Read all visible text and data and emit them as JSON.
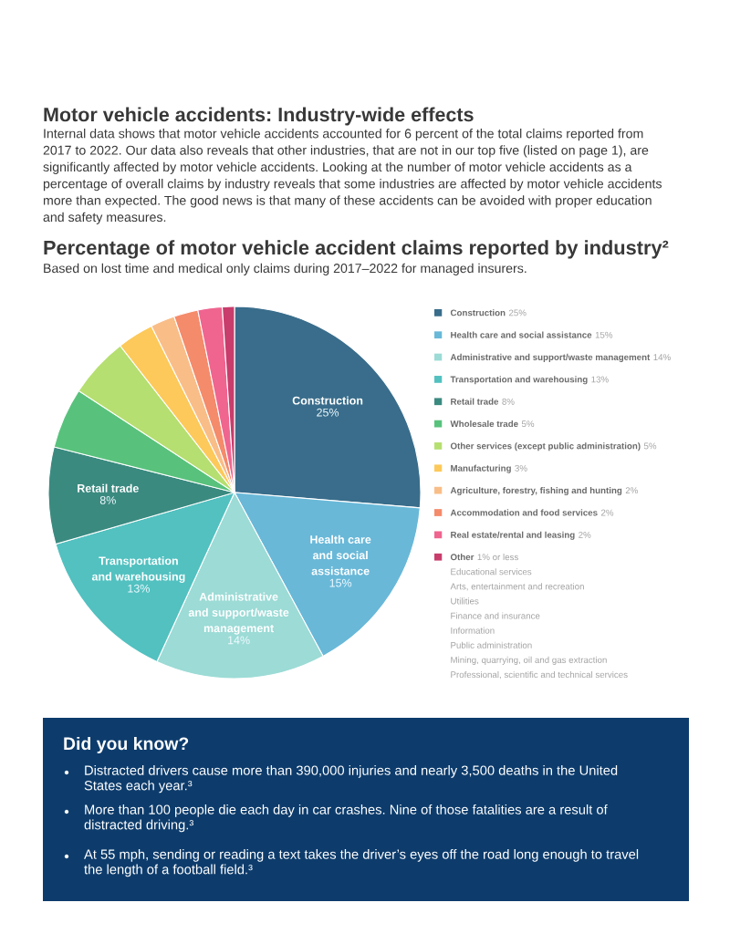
{
  "chart_data": {
    "type": "pie",
    "title": "Percentage of motor vehicle accident claims reported by industry²",
    "subtitle": "Based on lost time and medical only claims during 2017–2022 for managed insurers.",
    "categories": [
      "Construction",
      "Health care and social assistance",
      "Administrative and support/waste management",
      "Transportation and warehousing",
      "Retail trade",
      "Wholesale trade",
      "Other services (except public administration)",
      "Manufacturing",
      "Agriculture, forestry, fishing and hunting",
      "Accommodation and food services",
      "Real estate/rental and leasing",
      "Other"
    ],
    "values": [
      25,
      15,
      14,
      13,
      8,
      5,
      5,
      3,
      2,
      2,
      2,
      1
    ],
    "value_labels": [
      "25%",
      "15%",
      "14%",
      "13%",
      "8%",
      "5%",
      "5%",
      "3%",
      "2%",
      "2%",
      "2%",
      "1% or less"
    ],
    "colors": [
      "#396d8b",
      "#69b8d8",
      "#9cdbd6",
      "#52c1c0",
      "#3b8a80",
      "#58c27c",
      "#b5df70",
      "#fcc95a",
      "#f9bd88",
      "#f48b6b",
      "#ef6590",
      "#c83d6c"
    ],
    "legend": "right",
    "annotations": [
      "Motor vehicle accidents: Industry-wide effects",
      "Internal data shows that motor vehicle accidents accounted for 6 percent of the total claims reported from 2017 to 2022. Our data also reveals that other industries, that are not in our top five (listed on page 1), are significantly affected by motor vehicle accidents. Looking at the number of motor vehicle accidents as a percentage of overall claims by industry reveals that some industries are affected by motor vehicle accidents more than expected. The good news is that many of these accidents can be avoided with proper education and safety measures.",
      "Educational services",
      "Arts, entertainment and recreation",
      "Utilities",
      "Finance and insurance",
      "Information",
      "Public administration",
      "Mining, quarrying, oil and gas extraction",
      "Professional, scientific and technical services",
      "Did you know?",
      "Distracted drivers cause more than 390,000 injuries and nearly 3,500 deaths in the United States each year.³",
      "More than 100 people die each day in car crashes. Nine of those fatalities are a result of distracted driving.³",
      "At 55 mph, sending or reading a text takes the driver’s eyes off the road long enough to travel the length of a football field.³"
    ]
  }
}
